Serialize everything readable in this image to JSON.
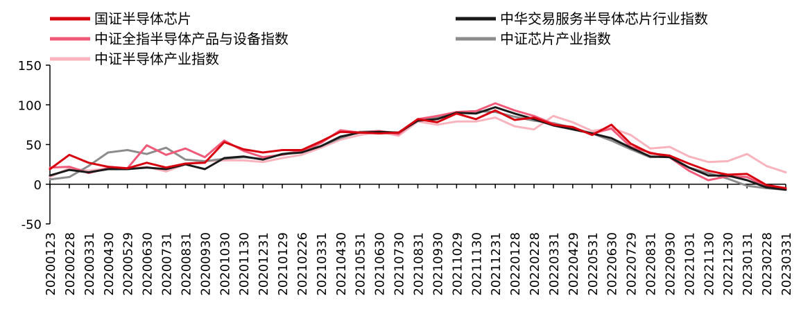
{
  "chart_data": {
    "type": "line",
    "title": "",
    "xlabel": "",
    "ylabel": "",
    "ylim": [
      -50,
      150
    ],
    "y_ticks": [
      -50,
      0,
      50,
      100,
      150
    ],
    "grid": false,
    "legend_position": "top",
    "x": [
      "20200123",
      "20200228",
      "20200331",
      "20200430",
      "20200529",
      "20200630",
      "20200731",
      "20200831",
      "20200930",
      "20201030",
      "20201130",
      "20201231",
      "20210129",
      "20210226",
      "20210331",
      "20210430",
      "20210531",
      "20210630",
      "20210730",
      "20210831",
      "20210930",
      "20211029",
      "20211130",
      "20211231",
      "20220128",
      "20220228",
      "20220331",
      "20220429",
      "20220531",
      "20220630",
      "20220729",
      "20220831",
      "20220930",
      "20221031",
      "20221130",
      "20221230",
      "20230131",
      "20230228",
      "20230331"
    ],
    "series": [
      {
        "name": "国证半导体芯片",
        "color": "#d7000f",
        "values": [
          19,
          37,
          27,
          22,
          20,
          27,
          21,
          26,
          27,
          53,
          44,
          40,
          43,
          43,
          54,
          66,
          65,
          64,
          65,
          82,
          78,
          89,
          82,
          93,
          81,
          84,
          75,
          72,
          62,
          75,
          51,
          39,
          36,
          26,
          17,
          12,
          13,
          -1,
          -5
        ]
      },
      {
        "name": "中华交易服务半导体芯片行业指数",
        "color": "#1a1a1a",
        "values": [
          11,
          18,
          15,
          19,
          19,
          21,
          19,
          25,
          19,
          33,
          35,
          31,
          38,
          40,
          48,
          60,
          65,
          66,
          65,
          80,
          82,
          90,
          89,
          97,
          89,
          82,
          74,
          69,
          64,
          58,
          46,
          35,
          34,
          21,
          11,
          11,
          5,
          -4,
          -7
        ]
      },
      {
        "name": "中证全指半导体产品与设备指数",
        "color": "#f05a78",
        "values": [
          21,
          22,
          14,
          20,
          20,
          49,
          37,
          45,
          34,
          55,
          42,
          34,
          37,
          42,
          52,
          68,
          65,
          67,
          63,
          82,
          86,
          91,
          92,
          102,
          93,
          86,
          76,
          69,
          64,
          70,
          47,
          40,
          34,
          17,
          5,
          10,
          9,
          -3,
          -5
        ]
      },
      {
        "name": "中证芯片产业指数",
        "color": "#8c8c8c",
        "values": [
          6,
          9,
          23,
          40,
          43,
          38,
          46,
          31,
          29,
          32,
          34,
          32,
          38,
          42,
          48,
          58,
          66,
          67,
          64,
          82,
          84,
          91,
          92,
          91,
          85,
          80,
          77,
          71,
          64,
          55,
          44,
          34,
          35,
          21,
          14,
          7,
          -2,
          -5,
          -7
        ]
      },
      {
        "name": "中证半导体产业指数",
        "color": "#f8b3bc",
        "values": [
          9,
          20,
          17,
          20,
          19,
          22,
          16,
          25,
          29,
          30,
          30,
          28,
          33,
          37,
          46,
          56,
          62,
          66,
          61,
          79,
          75,
          79,
          79,
          84,
          73,
          69,
          86,
          78,
          67,
          71,
          62,
          45,
          47,
          35,
          28,
          29,
          38,
          23,
          15
        ]
      }
    ]
  }
}
